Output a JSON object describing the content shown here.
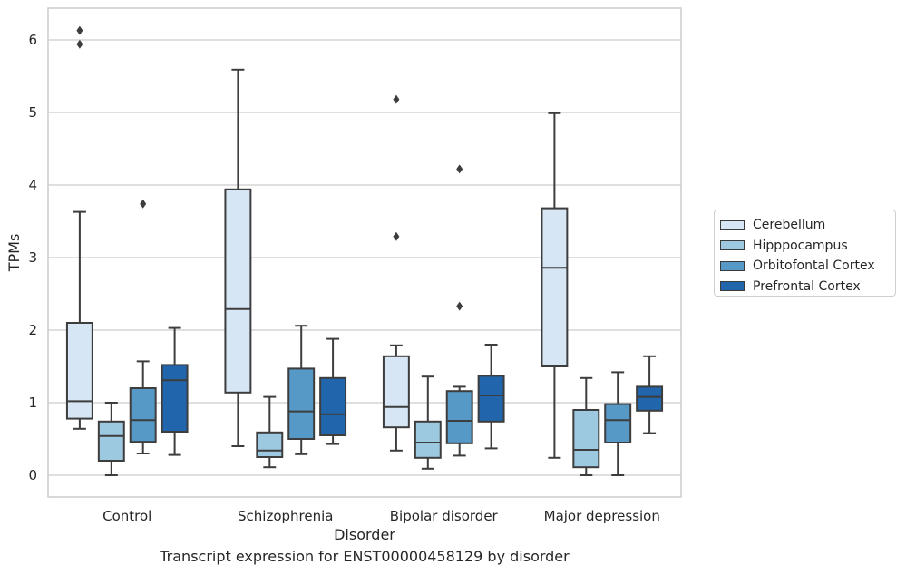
{
  "chart_data": {
    "type": "box",
    "title": "Transcript expression for ENST00000458129 by disorder",
    "xlabel": "Disorder",
    "ylabel": "TPMs",
    "ylim": [
      -0.3,
      6.45
    ],
    "yticks": [
      "0",
      "1",
      "2",
      "3",
      "4",
      "5",
      "6"
    ],
    "categories": [
      "Control",
      "Schizophrenia",
      "Bipolar disorder",
      "Major depression"
    ],
    "grid": true,
    "legend_position": "right",
    "series": [
      {
        "name": "Cerebellum",
        "color": "#d6e6f4",
        "boxes": [
          {
            "whislo": 0.64,
            "q1": 0.78,
            "med": 1.02,
            "q3": 2.1,
            "whishi": 3.63,
            "fliers": [
              5.94,
              6.13
            ]
          },
          {
            "whislo": 0.4,
            "q1": 1.14,
            "med": 2.29,
            "q3": 3.94,
            "whishi": 5.59,
            "fliers": []
          },
          {
            "whislo": 0.34,
            "q1": 0.66,
            "med": 0.94,
            "q3": 1.64,
            "whishi": 1.79,
            "fliers": [
              3.29,
              5.18
            ]
          },
          {
            "whislo": 0.24,
            "q1": 1.5,
            "med": 2.86,
            "q3": 3.68,
            "whishi": 4.99,
            "fliers": []
          }
        ]
      },
      {
        "name": "Hipppocampus",
        "color": "#9dc9e0",
        "boxes": [
          {
            "whislo": 0.0,
            "q1": 0.2,
            "med": 0.54,
            "q3": 0.74,
            "whishi": 1.0,
            "fliers": []
          },
          {
            "whislo": 0.11,
            "q1": 0.25,
            "med": 0.34,
            "q3": 0.59,
            "whishi": 1.08,
            "fliers": []
          },
          {
            "whislo": 0.09,
            "q1": 0.24,
            "med": 0.45,
            "q3": 0.74,
            "whishi": 1.36,
            "fliers": []
          },
          {
            "whislo": 0.0,
            "q1": 0.11,
            "med": 0.35,
            "q3": 0.9,
            "whishi": 1.34,
            "fliers": []
          }
        ]
      },
      {
        "name": "Orbitofontal Cortex",
        "color": "#5699c6",
        "boxes": [
          {
            "whislo": 0.3,
            "q1": 0.46,
            "med": 0.76,
            "q3": 1.2,
            "whishi": 1.57,
            "fliers": [
              3.74
            ]
          },
          {
            "whislo": 0.29,
            "q1": 0.5,
            "med": 0.88,
            "q3": 1.47,
            "whishi": 2.06,
            "fliers": []
          },
          {
            "whislo": 0.27,
            "q1": 0.44,
            "med": 0.75,
            "q3": 1.16,
            "whishi": 1.22,
            "fliers": [
              2.33,
              4.22
            ]
          },
          {
            "whislo": 0.0,
            "q1": 0.45,
            "med": 0.76,
            "q3": 0.98,
            "whishi": 1.42,
            "fliers": []
          }
        ]
      },
      {
        "name": "Prefrontal Cortex",
        "color": "#2166ac",
        "boxes": [
          {
            "whislo": 0.28,
            "q1": 0.6,
            "med": 1.31,
            "q3": 1.52,
            "whishi": 2.03,
            "fliers": []
          },
          {
            "whislo": 0.43,
            "q1": 0.55,
            "med": 0.84,
            "q3": 1.34,
            "whishi": 1.88,
            "fliers": []
          },
          {
            "whislo": 0.37,
            "q1": 0.74,
            "med": 1.1,
            "q3": 1.37,
            "whishi": 1.8,
            "fliers": []
          },
          {
            "whislo": 0.58,
            "q1": 0.89,
            "med": 1.08,
            "q3": 1.22,
            "whishi": 1.64,
            "fliers": []
          }
        ]
      }
    ]
  }
}
